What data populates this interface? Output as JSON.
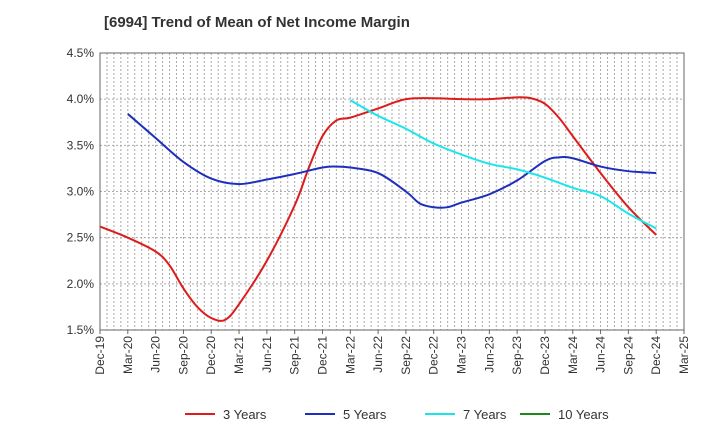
{
  "title": "[6994]  Trend of Mean of Net Income Margin",
  "chart_data": {
    "type": "line",
    "title": "[6994]  Trend of Mean of Net Income Margin",
    "xlabel": "",
    "ylabel": "",
    "ylim": [
      1.5,
      4.5
    ],
    "y_ticks": [
      1.5,
      2.0,
      2.5,
      3.0,
      3.5,
      4.0,
      4.5
    ],
    "y_tick_labels": [
      "1.5%",
      "2.0%",
      "2.5%",
      "3.0%",
      "3.5%",
      "4.0%",
      "4.5%"
    ],
    "x_tick_labels": [
      "Dec-19",
      "Mar-20",
      "Jun-20",
      "Sep-20",
      "Dec-20",
      "Mar-21",
      "Jun-21",
      "Sep-21",
      "Dec-21",
      "Mar-22",
      "Jun-22",
      "Sep-22",
      "Dec-22",
      "Mar-23",
      "Jun-23",
      "Sep-23",
      "Dec-23",
      "Mar-24",
      "Jun-24",
      "Sep-24",
      "Dec-24",
      "Mar-25"
    ],
    "grid": true,
    "legend_position": "bottom",
    "series": [
      {
        "name": "3 Years",
        "color": "#dd1c1c",
        "values": [
          [
            0,
            2.62
          ],
          [
            1,
            2.5
          ],
          [
            2,
            2.35
          ],
          [
            2.5,
            2.2
          ],
          [
            3,
            1.95
          ],
          [
            3.5,
            1.75
          ],
          [
            4,
            1.63
          ],
          [
            4.5,
            1.61
          ],
          [
            5,
            1.78
          ],
          [
            6,
            2.25
          ],
          [
            7,
            2.85
          ],
          [
            7.5,
            3.25
          ],
          [
            8,
            3.6
          ],
          [
            8.5,
            3.77
          ],
          [
            9,
            3.8
          ],
          [
            10,
            3.9
          ],
          [
            11,
            4.0
          ],
          [
            12,
            4.01
          ],
          [
            13,
            4.0
          ],
          [
            14,
            4.0
          ],
          [
            15,
            4.02
          ],
          [
            15.5,
            4.01
          ],
          [
            16,
            3.95
          ],
          [
            16.5,
            3.8
          ],
          [
            17,
            3.6
          ],
          [
            18,
            3.2
          ],
          [
            19,
            2.83
          ],
          [
            20,
            2.53
          ]
        ]
      },
      {
        "name": "5 Years",
        "color": "#1f2fbd",
        "values": [
          [
            1,
            3.84
          ],
          [
            2,
            3.58
          ],
          [
            3,
            3.32
          ],
          [
            4,
            3.14
          ],
          [
            5,
            3.08
          ],
          [
            6,
            3.13
          ],
          [
            7,
            3.19
          ],
          [
            8,
            3.26
          ],
          [
            8.5,
            3.27
          ],
          [
            9,
            3.26
          ],
          [
            10,
            3.2
          ],
          [
            11,
            3.0
          ],
          [
            11.5,
            2.87
          ],
          [
            12,
            2.83
          ],
          [
            12.5,
            2.83
          ],
          [
            13,
            2.88
          ],
          [
            14,
            2.97
          ],
          [
            15,
            3.12
          ],
          [
            16,
            3.33
          ],
          [
            16.5,
            3.37
          ],
          [
            17,
            3.36
          ],
          [
            18,
            3.27
          ],
          [
            19,
            3.22
          ],
          [
            20,
            3.2
          ]
        ]
      },
      {
        "name": "7 Years",
        "color": "#19e6ec",
        "values": [
          [
            9,
            3.99
          ],
          [
            10,
            3.82
          ],
          [
            11,
            3.68
          ],
          [
            12,
            3.52
          ],
          [
            13,
            3.4
          ],
          [
            14,
            3.3
          ],
          [
            15,
            3.24
          ],
          [
            16,
            3.15
          ],
          [
            17,
            3.04
          ],
          [
            18,
            2.95
          ],
          [
            19,
            2.76
          ],
          [
            20,
            2.6
          ]
        ]
      },
      {
        "name": "10 Years",
        "color": "#1e8a1e",
        "values": []
      }
    ]
  }
}
